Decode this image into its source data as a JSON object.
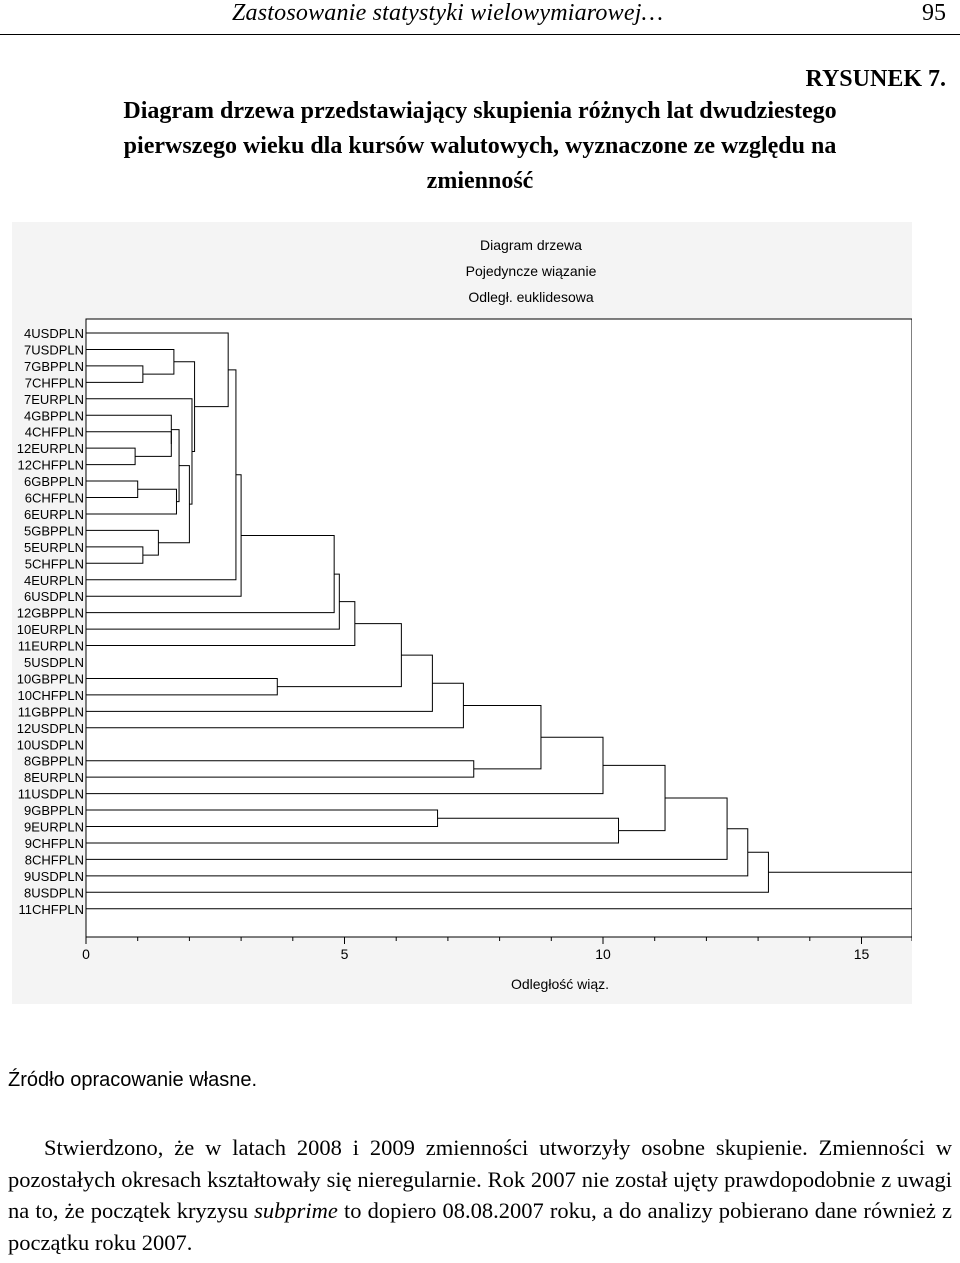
{
  "header": {
    "running_title": "Zastosowanie statystyki wielowymiarowej…",
    "page_number": "95"
  },
  "figure": {
    "label": "RYSUNEK 7.",
    "title_lines": [
      "Diagram drzewa przedstawiający skupienia różnych lat dwudziestego",
      "pierwszego wieku dla kursów walutowych, wyznaczone ze względu na",
      "zmienność"
    ],
    "source": "Źródło opracowanie własne."
  },
  "chart_data": {
    "type": "dendrogram",
    "title": "Diagram drzewa",
    "subtitle": [
      "Pojedyncze wiązanie",
      "Odległ. euklidesowa"
    ],
    "xlabel": "Odległość wiąz.",
    "xlim": [
      0,
      16
    ],
    "xticks": [
      0,
      5,
      10,
      15
    ],
    "leaves": [
      "4USDPLN",
      "7USDPLN",
      "7GBPPLN",
      "7CHFPLN",
      "7EURPLN",
      "4GBPPLN",
      "4CHFPLN",
      "12EURPLN",
      "12CHFPLN",
      "6GBPPLN",
      "6CHFPLN",
      "6EURPLN",
      "5GBPPLN",
      "5EURPLN",
      "5CHFPLN",
      "4EURPLN",
      "6USDPLN",
      "12GBPPLN",
      "10EURPLN",
      "11EURPLN",
      "5USDPLN",
      "10GBPPLN",
      "10CHFPLN",
      "11GBPPLN",
      "12USDPLN",
      "10USDPLN",
      "8GBPPLN",
      "8EURPLN",
      "11USDPLN",
      "9GBPPLN",
      "9EURPLN",
      "9CHFPLN",
      "8CHFPLN",
      "9USDPLN",
      "8USDPLN",
      "11CHFPLN"
    ],
    "merges": [
      [
        "7GBPPLN",
        "7CHFPLN",
        1.1
      ],
      [
        "7USDPLN",
        "7GBPPLN",
        1.7
      ],
      [
        "12EURPLN",
        "12CHFPLN",
        0.95
      ],
      [
        "6GBPPLN",
        "6CHFPLN",
        1.0
      ],
      [
        "4CHFPLN",
        "12EURPLN",
        1.65
      ],
      [
        "4GBPPLN",
        "4CHFPLN",
        1.65
      ],
      [
        "6EURPLN",
        "6GBPPLN",
        1.75
      ],
      [
        "5EURPLN",
        "5CHFPLN",
        1.1
      ],
      [
        "5GBPPLN",
        "5EURPLN",
        1.4
      ],
      [
        "4GBPPLN",
        "6EURPLN",
        1.8
      ],
      [
        "4GBPPLN",
        "5GBPPLN",
        2.0
      ],
      [
        "7EURPLN",
        "4GBPPLN",
        2.05
      ],
      [
        "7USDPLN",
        "7EURPLN",
        2.1
      ],
      [
        "4USDPLN",
        "7USDPLN",
        2.75
      ],
      [
        "4USDPLN",
        "4EURPLN",
        2.9
      ],
      [
        "4USDPLN",
        "6USDPLN",
        3.0
      ],
      [
        "10GBPPLN",
        "10CHFPLN",
        3.7
      ],
      [
        "4USDPLN",
        "12GBPPLN",
        4.8
      ],
      [
        "4USDPLN",
        "10EURPLN",
        4.9
      ],
      [
        "4USDPLN",
        "11EURPLN",
        5.2
      ],
      [
        "4USDPLN",
        "10GBPPLN",
        6.1
      ],
      [
        "4USDPLN",
        "11GBPPLN",
        6.7
      ],
      [
        "4USDPLN",
        "12USDPLN",
        7.3
      ],
      [
        "8GBPPLN",
        "8EURPLN",
        7.5
      ],
      [
        "4USDPLN",
        "8GBPPLN",
        8.8
      ],
      [
        "9GBPPLN",
        "9EURPLN",
        6.8
      ],
      [
        "4USDPLN",
        "11USDPLN",
        10.0
      ],
      [
        "9GBPPLN",
        "9CHFPLN",
        10.3
      ],
      [
        "4USDPLN",
        "9GBPPLN",
        11.2
      ],
      [
        "4USDPLN",
        "8CHFPLN",
        12.4
      ],
      [
        "4USDPLN",
        "9USDPLN",
        12.8
      ],
      [
        "4USDPLN",
        "8USDPLN",
        13.2
      ],
      [
        "4USDPLN",
        "11CHFPLN",
        16.0
      ]
    ]
  },
  "body": {
    "paragraph_start": "Stwierdzono, że w latach 2008 i 2009 zmienności utworzyły osobne skupienie. Zmienności w pozostałych okresach kształtowały się nieregularnie. Rok 2007 nie został ujęty prawdopodobnie z uwagi na to, że początek kryzysu ",
    "italic_term": "subprime",
    "paragraph_end": " to dopiero 08.08.2007 roku, a do analizy pobierano dane również z początku roku 2007."
  }
}
